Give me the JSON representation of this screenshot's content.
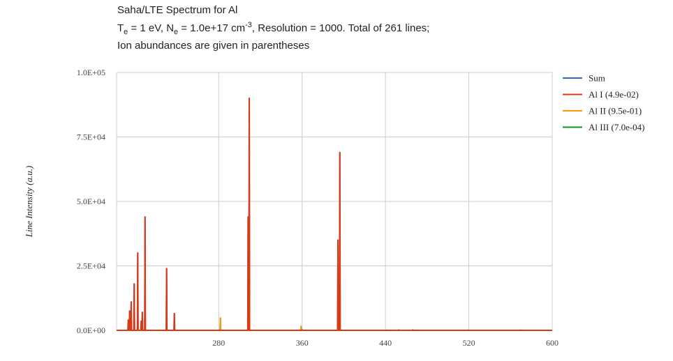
{
  "title": {
    "line1": "Saha/LTE Spectrum for Al",
    "te_sym": "T",
    "te_sub": "e",
    "te_val": " = 1 eV, N",
    "ne_sub": "e",
    "ne_val": " = 1.0e+17 cm",
    "ne_sup": "-3",
    "tail": ", Resolution = 1000. Total of 261 lines;",
    "line3": "Ion abundances are given in parentheses"
  },
  "chart_data": {
    "type": "line",
    "title": "Saha/LTE Spectrum for Al",
    "xlabel": "",
    "ylabel": "Line Intensity (a.u.)",
    "xlim": [
      182,
      600
    ],
    "ylim": [
      0,
      100000
    ],
    "xticks": [
      280,
      360,
      440,
      520,
      600
    ],
    "yticks": [
      0,
      25000,
      50000,
      75000,
      100000
    ],
    "ytick_labels": [
      "0.0E+00",
      "2.5E+04",
      "5.0E+04",
      "7.5E+04",
      "1.0E+05"
    ],
    "grid": true,
    "legend_position": "right",
    "series": [
      {
        "name": "Sum",
        "color": "#3366cc",
        "peaks": [
          [
            193.2,
            4000
          ],
          [
            194.5,
            7500
          ],
          [
            196.0,
            11000
          ],
          [
            198.9,
            18000
          ],
          [
            202.3,
            30000
          ],
          [
            205.6,
            3500
          ],
          [
            206.7,
            7000
          ],
          [
            209.3,
            44000
          ],
          [
            230.0,
            24000
          ],
          [
            237.4,
            6500
          ],
          [
            281.6,
            4800
          ],
          [
            308.2,
            44000
          ],
          [
            309.3,
            90000
          ],
          [
            359.0,
            1500
          ],
          [
            394.4,
            35000
          ],
          [
            396.2,
            69000
          ]
        ]
      },
      {
        "name": "Al I (4.9e-02)",
        "color": "#dc3912",
        "peaks": [
          [
            193.2,
            4000
          ],
          [
            194.5,
            7500
          ],
          [
            196.0,
            11000
          ],
          [
            198.9,
            18000
          ],
          [
            202.3,
            30000
          ],
          [
            205.6,
            3500
          ],
          [
            206.7,
            7000
          ],
          [
            209.3,
            44000
          ],
          [
            230.0,
            24000
          ],
          [
            237.4,
            6500
          ],
          [
            308.2,
            44000
          ],
          [
            309.3,
            90000
          ],
          [
            394.4,
            35000
          ],
          [
            396.2,
            69000
          ]
        ]
      },
      {
        "name": "Al II (9.5e-01)",
        "color": "#ff9900",
        "peaks": [
          [
            281.6,
            4800
          ],
          [
            359.0,
            1500
          ],
          [
            466.3,
            300
          ]
        ]
      },
      {
        "name": "Al III (7.0e-04)",
        "color": "#109618",
        "peaks": [
          [
            360.1,
            200
          ],
          [
            452.9,
            150
          ],
          [
            569.7,
            100
          ]
        ]
      }
    ]
  }
}
